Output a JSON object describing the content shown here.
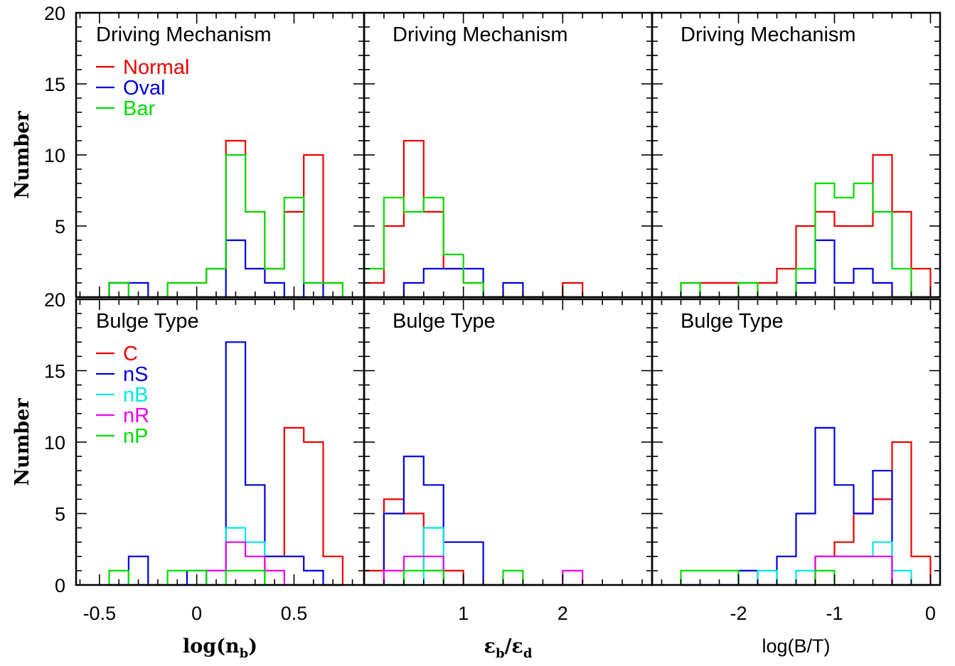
{
  "ylabel": "Number",
  "colors": {
    "red": "#ee0000",
    "blue": "#0000dd",
    "cyan": "#00e8e8",
    "magenta": "#ee00ee",
    "green": "#00dd00"
  },
  "x_axes": [
    {
      "label_parts": [
        "log(n",
        "b",
        ")"
      ],
      "ticks": [
        -0.5,
        0,
        0.5
      ],
      "tick_labels": [
        "-0.5",
        "0",
        "0.5"
      ],
      "xlim": [
        -0.62,
        0.86
      ]
    },
    {
      "label_parts": [
        "ε",
        "b",
        "/ε",
        "d"
      ],
      "ticks": [
        1,
        2
      ],
      "tick_labels": [
        "1",
        "2"
      ],
      "xlim": [
        0.0,
        2.9
      ]
    },
    {
      "label_parts": [
        "log(B/T)"
      ],
      "ticks": [
        -2,
        -1,
        0
      ],
      "tick_labels": [
        "-2",
        "-1",
        "0"
      ],
      "xlim": [
        -2.9,
        0.1
      ]
    }
  ],
  "y_rows": [
    {
      "ylim": [
        0,
        20
      ],
      "tick_labels": [
        "20",
        "15",
        "10",
        "5"
      ]
    },
    {
      "ylim": [
        0,
        20
      ],
      "tick_labels": [
        "20",
        "15",
        "10",
        "5",
        "0"
      ]
    }
  ],
  "chart_data": [
    {
      "type": "histogram",
      "title": "Driving Mechanism",
      "xlabel": "log(n_b)",
      "ylabel": "Number",
      "ylim": [
        0,
        20
      ],
      "legend": [
        {
          "label": "Normal",
          "color": "red"
        },
        {
          "label": "Oval",
          "color": "blue"
        },
        {
          "label": "Bar",
          "color": "green"
        }
      ],
      "series": [
        {
          "name": "Normal",
          "color": "red",
          "edges": [
            -0.45,
            -0.35,
            -0.25,
            -0.15,
            -0.05,
            0.05,
            0.15,
            0.25,
            0.35,
            0.45,
            0.55,
            0.65,
            0.75
          ],
          "values": [
            1,
            0,
            0,
            1,
            1,
            2,
            11,
            6,
            2,
            6,
            10,
            1
          ]
        },
        {
          "name": "Oval",
          "color": "blue",
          "edges": [
            -0.45,
            -0.35,
            -0.25,
            -0.15,
            -0.05,
            0.05,
            0.15,
            0.25,
            0.35,
            0.45,
            0.55,
            0.65,
            0.75
          ],
          "values": [
            1,
            1,
            0,
            0,
            0,
            0,
            4,
            2,
            1,
            0,
            1,
            0
          ]
        },
        {
          "name": "Bar",
          "color": "green",
          "edges": [
            -0.45,
            -0.35,
            -0.25,
            -0.15,
            -0.05,
            0.05,
            0.15,
            0.25,
            0.35,
            0.45,
            0.55,
            0.65,
            0.75
          ],
          "values": [
            1,
            0,
            0,
            1,
            1,
            2,
            10,
            6,
            2,
            7,
            1,
            1
          ]
        }
      ]
    },
    {
      "type": "histogram",
      "title": "Driving Mechanism",
      "xlabel": "ε_b/ε_d",
      "ylabel": "Number",
      "ylim": [
        0,
        20
      ],
      "series": [
        {
          "name": "Normal",
          "color": "red",
          "edges": [
            0.0,
            0.2,
            0.4,
            0.6,
            0.8,
            1.0,
            1.2,
            1.4,
            1.6,
            1.8,
            2.0,
            2.2
          ],
          "values": [
            1,
            5,
            11,
            6,
            2,
            1,
            0,
            0,
            0,
            0,
            1
          ]
        },
        {
          "name": "Oval",
          "color": "blue",
          "edges": [
            0.0,
            0.2,
            0.4,
            0.6,
            0.8,
            1.0,
            1.2,
            1.4,
            1.6,
            1.8,
            2.0,
            2.2
          ],
          "values": [
            0,
            0,
            1,
            2,
            2,
            2,
            0,
            1,
            0,
            0,
            0
          ]
        },
        {
          "name": "Bar",
          "color": "green",
          "edges": [
            0.0,
            0.2,
            0.4,
            0.6,
            0.8,
            1.0,
            1.2,
            1.4,
            1.6,
            1.8,
            2.0,
            2.2
          ],
          "values": [
            2,
            7,
            6,
            7,
            3,
            1,
            0,
            0,
            0,
            0,
            0
          ]
        }
      ]
    },
    {
      "type": "histogram",
      "title": "Driving Mechanism",
      "xlabel": "log(B/T)",
      "ylabel": "Number",
      "ylim": [
        0,
        20
      ],
      "series": [
        {
          "name": "Normal",
          "color": "red",
          "edges": [
            -2.6,
            -2.4,
            -2.2,
            -2.0,
            -1.8,
            -1.6,
            -1.4,
            -1.2,
            -1.0,
            -0.8,
            -0.6,
            -0.4,
            -0.2,
            0.0
          ],
          "values": [
            1,
            1,
            1,
            1,
            1,
            2,
            5,
            6,
            5,
            5,
            10,
            6,
            2
          ]
        },
        {
          "name": "Oval",
          "color": "blue",
          "edges": [
            -2.6,
            -2.4,
            -2.2,
            -2.0,
            -1.8,
            -1.6,
            -1.4,
            -1.2,
            -1.0,
            -0.8,
            -0.6,
            -0.4,
            -0.2,
            0.0
          ],
          "values": [
            0,
            0,
            0,
            0,
            0,
            0,
            1,
            4,
            1,
            2,
            1,
            0,
            0
          ]
        },
        {
          "name": "Bar",
          "color": "green",
          "edges": [
            -2.6,
            -2.4,
            -2.2,
            -2.0,
            -1.8,
            -1.6,
            -1.4,
            -1.2,
            -1.0,
            -0.8,
            -0.6,
            -0.4,
            -0.2,
            0.0
          ],
          "values": [
            1,
            0,
            0,
            1,
            0,
            0,
            2,
            8,
            7,
            8,
            6,
            2,
            0
          ]
        }
      ]
    },
    {
      "type": "histogram",
      "title": "Bulge Type",
      "xlabel": "log(n_b)",
      "ylabel": "Number",
      "ylim": [
        0,
        20
      ],
      "legend": [
        {
          "label": "C",
          "color": "red"
        },
        {
          "label": "nS",
          "color": "blue"
        },
        {
          "label": "nB",
          "color": "cyan"
        },
        {
          "label": "nR",
          "color": "magenta"
        },
        {
          "label": "nP",
          "color": "green"
        }
      ],
      "series": [
        {
          "name": "C",
          "color": "red",
          "edges": [
            -0.45,
            -0.35,
            -0.25,
            -0.15,
            -0.05,
            0.05,
            0.15,
            0.25,
            0.35,
            0.45,
            0.55,
            0.65,
            0.75
          ],
          "values": [
            0,
            0,
            0,
            0,
            0,
            0,
            0,
            0,
            2,
            11,
            10,
            2
          ]
        },
        {
          "name": "nS",
          "color": "blue",
          "edges": [
            -0.45,
            -0.35,
            -0.25,
            -0.15,
            -0.05,
            0.05,
            0.15,
            0.25,
            0.35,
            0.45,
            0.55,
            0.65,
            0.75
          ],
          "values": [
            0,
            2,
            0,
            0,
            1,
            1,
            17,
            7,
            2,
            2,
            1,
            0
          ]
        },
        {
          "name": "nB",
          "color": "cyan",
          "edges": [
            -0.45,
            -0.35,
            -0.25,
            -0.15,
            -0.05,
            0.05,
            0.15,
            0.25,
            0.35,
            0.45,
            0.55,
            0.65,
            0.75
          ],
          "values": [
            0,
            0,
            0,
            0,
            0,
            1,
            4,
            3,
            0,
            0,
            0,
            0
          ]
        },
        {
          "name": "nR",
          "color": "magenta",
          "edges": [
            -0.45,
            -0.35,
            -0.25,
            -0.15,
            -0.05,
            0.05,
            0.15,
            0.25,
            0.35,
            0.45,
            0.55,
            0.65,
            0.75
          ],
          "values": [
            0,
            0,
            0,
            0,
            0,
            1,
            3,
            2,
            1,
            0,
            0,
            0
          ]
        },
        {
          "name": "nP",
          "color": "green",
          "edges": [
            -0.45,
            -0.35,
            -0.25,
            -0.15,
            -0.05,
            0.05,
            0.15,
            0.25,
            0.35,
            0.45,
            0.55,
            0.65,
            0.75
          ],
          "values": [
            1,
            0,
            0,
            1,
            1,
            0,
            1,
            1,
            0,
            0,
            0,
            0
          ]
        }
      ]
    },
    {
      "type": "histogram",
      "title": "Bulge Type",
      "xlabel": "ε_b/ε_d",
      "ylabel": "Number",
      "ylim": [
        0,
        20
      ],
      "series": [
        {
          "name": "C",
          "color": "red",
          "edges": [
            0.0,
            0.2,
            0.4,
            0.6,
            0.8,
            1.0,
            1.2,
            1.4,
            1.6,
            1.8,
            2.0,
            2.2
          ],
          "values": [
            1,
            6,
            5,
            1,
            1,
            0,
            0,
            0,
            0,
            0,
            0
          ]
        },
        {
          "name": "nS",
          "color": "blue",
          "edges": [
            0.0,
            0.2,
            0.4,
            0.6,
            0.8,
            1.0,
            1.2,
            1.4,
            1.6,
            1.8,
            2.0,
            2.2
          ],
          "values": [
            0,
            5,
            9,
            7,
            3,
            3,
            0,
            0,
            0,
            0,
            0
          ]
        },
        {
          "name": "nB",
          "color": "cyan",
          "edges": [
            0.0,
            0.2,
            0.4,
            0.6,
            0.8,
            1.0,
            1.2,
            1.4,
            1.6,
            1.8,
            2.0,
            2.2
          ],
          "values": [
            0,
            0,
            0,
            4,
            0,
            0,
            0,
            0,
            0,
            0,
            0
          ]
        },
        {
          "name": "nR",
          "color": "magenta",
          "edges": [
            0.0,
            0.2,
            0.4,
            0.6,
            0.8,
            1.0,
            1.2,
            1.4,
            1.6,
            1.8,
            2.0,
            2.2
          ],
          "values": [
            0,
            1,
            2,
            2,
            0,
            0,
            0,
            0,
            0,
            0,
            1
          ]
        },
        {
          "name": "nP",
          "color": "green",
          "edges": [
            0.0,
            0.2,
            0.4,
            0.6,
            0.8,
            1.0,
            1.2,
            1.4,
            1.6,
            1.8,
            2.0,
            2.2
          ],
          "values": [
            0,
            0,
            1,
            1,
            0,
            0,
            0,
            1,
            0,
            0,
            0
          ]
        }
      ]
    },
    {
      "type": "histogram",
      "title": "Bulge Type",
      "xlabel": "log(B/T)",
      "ylabel": "Number",
      "ylim": [
        0,
        20
      ],
      "series": [
        {
          "name": "C",
          "color": "red",
          "edges": [
            -2.6,
            -2.4,
            -2.2,
            -2.0,
            -1.8,
            -1.6,
            -1.4,
            -1.2,
            -1.0,
            -0.8,
            -0.6,
            -0.4,
            -0.2,
            0.0
          ],
          "values": [
            0,
            0,
            0,
            0,
            0,
            0,
            0,
            2,
            3,
            5,
            6,
            10,
            2
          ]
        },
        {
          "name": "nS",
          "color": "blue",
          "edges": [
            -2.6,
            -2.4,
            -2.2,
            -2.0,
            -1.8,
            -1.6,
            -1.4,
            -1.2,
            -1.0,
            -0.8,
            -0.6,
            -0.4,
            -0.2,
            0.0
          ],
          "values": [
            0,
            0,
            0,
            1,
            0,
            2,
            5,
            11,
            7,
            5,
            8,
            0,
            0
          ]
        },
        {
          "name": "nB",
          "color": "cyan",
          "edges": [
            -2.6,
            -2.4,
            -2.2,
            -2.0,
            -1.8,
            -1.6,
            -1.4,
            -1.2,
            -1.0,
            -0.8,
            -0.6,
            -0.4,
            -0.2,
            0.0
          ],
          "values": [
            0,
            0,
            0,
            0,
            1,
            0,
            1,
            2,
            2,
            2,
            3,
            1,
            0
          ]
        },
        {
          "name": "nR",
          "color": "magenta",
          "edges": [
            -2.6,
            -2.4,
            -2.2,
            -2.0,
            -1.8,
            -1.6,
            -1.4,
            -1.2,
            -1.0,
            -0.8,
            -0.6,
            -0.4,
            -0.2,
            0.0
          ],
          "values": [
            0,
            0,
            0,
            0,
            0,
            0,
            0,
            2,
            2,
            2,
            2,
            0,
            0
          ]
        },
        {
          "name": "nP",
          "color": "green",
          "edges": [
            -2.6,
            -2.4,
            -2.2,
            -2.0,
            -1.8,
            -1.6,
            -1.4,
            -1.2,
            -1.0,
            -0.8,
            -0.6,
            -0.4,
            -0.2,
            0.0
          ],
          "values": [
            1,
            1,
            1,
            0,
            0,
            0,
            0,
            1,
            0,
            0,
            0,
            0,
            0
          ]
        }
      ]
    }
  ]
}
